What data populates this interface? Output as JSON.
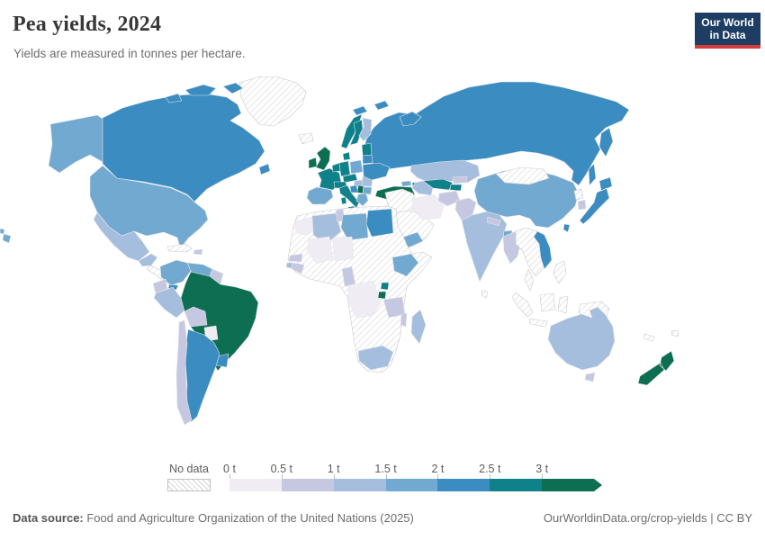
{
  "header": {
    "title": "Pea yields, 2024",
    "subtitle": "Yields are measured in tonnes per hectare."
  },
  "logo": {
    "line1": "Our World",
    "line2": "in Data",
    "bg_color": "#1d3d63",
    "accent_color": "#d73c3c"
  },
  "footer": {
    "source_label": "Data source:",
    "source_text": " Food and Agriculture Organization of the United Nations (2025)",
    "right_text": "OurWorldinData.org/crop-yields | CC BY"
  },
  "map_style": {
    "ocean_color": "#ffffff",
    "border_color": "#e3e6ec",
    "no_data_border": "#c9c9c9",
    "hatch_line_color": "#d4d4d4"
  },
  "chart_data": {
    "type": "heatmap",
    "subtype": "choropleth-world-map",
    "title": "Pea yields, 2024",
    "unit": "tonnes per hectare",
    "legend": {
      "position": "bottom",
      "no_data_label": "No data",
      "bin_edge_labels": [
        "0 t",
        "0.5 t",
        "1 t",
        "1.5 t",
        "2 t",
        "2.5 t",
        "3 t"
      ],
      "bin_ranges": [
        "0-0.5",
        "0.5-1",
        "1-1.5",
        "1.5-2",
        "2-2.5",
        "2.5-3",
        "3+"
      ],
      "bin_colors": [
        "#f0ecf4",
        "#c6c7e1",
        "#a5bedd",
        "#72a9d1",
        "#3b8cc0",
        "#0f818b",
        "#0e6e52"
      ]
    },
    "regions": {
      "canada": 4,
      "alaska": 3,
      "usa": 3,
      "hawaii": 3,
      "greenland": "no_data",
      "iceland": "no_data",
      "mexico": 2,
      "central-america": "no_data",
      "panama": 4,
      "cuba": "no_data",
      "hispaniola": 1,
      "colombia": 3,
      "venezuela": 3,
      "guyanas": 1,
      "ecuador": 1,
      "peru": 2,
      "brazil": 6,
      "bolivia": 1,
      "paraguay": 0,
      "uruguay": 4,
      "argentina": 4,
      "chile": 1,
      "uk": 6,
      "ireland": 6,
      "france": 5,
      "iberia": 3,
      "benelux": 5,
      "germany": 5,
      "denmark": 5,
      "norway": 5,
      "sweden": 5,
      "finland": 2,
      "baltics": 5,
      "poland": 3,
      "czech-slovakia": 5,
      "alpine": 5,
      "italy": 5,
      "hungary": 2,
      "romania": 2,
      "west-balkans": 4,
      "serbia": 6,
      "bulgaria": 3,
      "greece": 3,
      "ukraine": 4,
      "belarus": 4,
      "russia": 4,
      "turkey": 6,
      "georgia": 3,
      "azerbaijan": 5,
      "middle-east": "no_data",
      "israel": 5,
      "arabia": "no_data",
      "yemen": 3,
      "iran": 0,
      "kazakhstan": 2,
      "uzbekistan": 5,
      "turkmenistan": 2,
      "kyrgyzstan": 1,
      "tajikistan": 5,
      "afghanistan": 1,
      "pakistan": 1,
      "india": 2,
      "nepal": 1,
      "bangladesh": 3,
      "sri-lanka": "no_data",
      "china": 3,
      "mongolia": "no_data",
      "taiwan": 4,
      "japan": 4,
      "north-korea": "no_data",
      "south-korea": 1,
      "myanmar": 1,
      "indochina": "no_data",
      "vietnam": 4,
      "maritime-se-asia": "no_data",
      "pacific-islands": "no_data",
      "africa-nodata": "no_data",
      "morocco": 0,
      "algeria": 2,
      "tunisia": 1,
      "libya": 3,
      "egypt": 4,
      "mali": 0,
      "niger": 0,
      "senegal": 1,
      "guinea": 1,
      "guinea-bissau": 2,
      "cameroon": 1,
      "drc": 0,
      "uganda": 5,
      "rwanda-burundi": 6,
      "tanzania": 1,
      "malawi": 1,
      "ethiopia": 3,
      "south-africa": 2,
      "madagascar": 2,
      "australia": 2,
      "tasmania": 1,
      "new-zealand": 6
    }
  }
}
